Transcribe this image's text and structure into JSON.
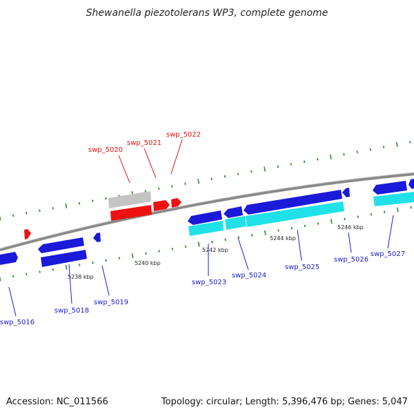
{
  "title": "Shewanella piezotolerans WP3, complete genome",
  "footer": {
    "accession": "Accession: NC_011566",
    "summary": "Topology: circular; Length: 5,396,476 bp; Genes: 5,047"
  },
  "colors": {
    "backbone": "#8a8a8a",
    "ticks": "#2a8a2a",
    "gene_blue": "#1a1ad8",
    "gene_cyan": "#20e0e8",
    "gene_red": "#ee1111",
    "gene_gray": "#c4c4c4",
    "label_red": "#dd1111",
    "label_blue": "#1a1acc"
  },
  "tick_labels": [
    "5238 kbp",
    "5240 kbp",
    "5242 kbp",
    "5244 kbp",
    "5246 kbp"
  ],
  "genes": [
    {
      "id": "swp_5016",
      "strand": "minus",
      "color": "blue"
    },
    {
      "id": "swp_5018",
      "strand": "minus",
      "color": "blue"
    },
    {
      "id": "swp_5019",
      "strand": "minus",
      "color": "blue"
    },
    {
      "id": "swp_5020",
      "strand": "plus",
      "color": "gray"
    },
    {
      "id": "swp_5021",
      "strand": "plus",
      "color": "red"
    },
    {
      "id": "swp_5022",
      "strand": "plus",
      "color": "red"
    },
    {
      "id": "swp_5023",
      "strand": "minus",
      "color": "blue"
    },
    {
      "id": "swp_5024",
      "strand": "minus",
      "color": "blue"
    },
    {
      "id": "swp_5025",
      "strand": "minus",
      "color": "blue"
    },
    {
      "id": "swp_5026",
      "strand": "minus",
      "color": "blue"
    },
    {
      "id": "swp_5027",
      "strand": "minus",
      "color": "blue"
    }
  ]
}
